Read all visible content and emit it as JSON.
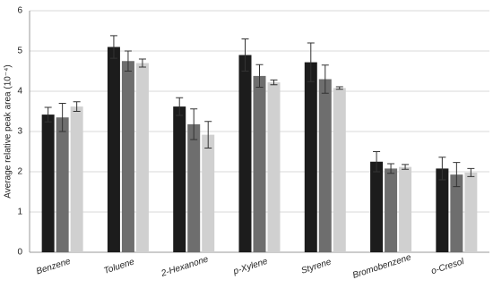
{
  "chart_data": {
    "type": "bar",
    "y_label": "Average relative peak area (10⁻⁴)",
    "categories": [
      "Benzene",
      "Toluene",
      "2-Hexanone",
      "p-Xylene",
      "Styrene",
      "Bromobenzene",
      "o-Cresol"
    ],
    "series": [
      {
        "color": "#1c1c1c",
        "values": [
          3.42,
          5.1,
          3.62,
          4.9,
          4.72,
          2.25,
          2.08
        ],
        "errors": [
          0.18,
          0.28,
          0.22,
          0.4,
          0.48,
          0.25,
          0.28
        ]
      },
      {
        "color": "#6e6e6e",
        "values": [
          3.35,
          4.75,
          3.18,
          4.38,
          4.3,
          2.08,
          1.93
        ],
        "errors": [
          0.35,
          0.25,
          0.38,
          0.28,
          0.35,
          0.12,
          0.3
        ]
      },
      {
        "color": "#d0d0d0",
        "values": [
          3.62,
          4.7,
          2.92,
          4.22,
          4.08,
          2.12,
          1.98
        ],
        "errors": [
          0.12,
          0.1,
          0.33,
          0.06,
          0.03,
          0.06,
          0.1
        ]
      }
    ],
    "ylim": [
      0,
      6
    ],
    "yticks": [
      0,
      1,
      2,
      3,
      4,
      5,
      6
    ],
    "grid": true
  }
}
